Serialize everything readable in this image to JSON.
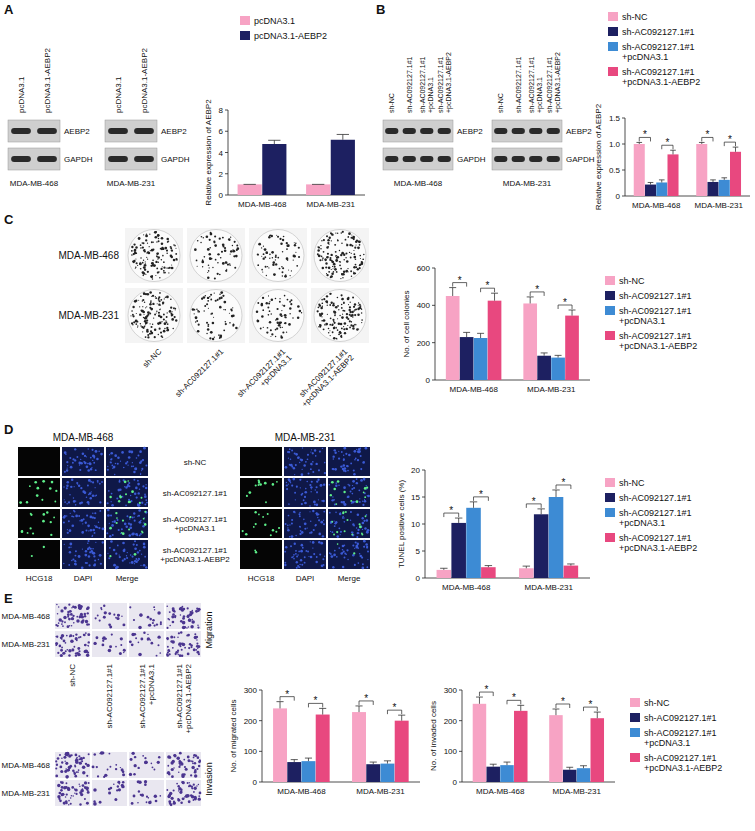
{
  "letters": [
    "A",
    "B",
    "C",
    "D",
    "E"
  ],
  "blots": [
    {
      "lanes": [
        "pcDNA3.1",
        "pcDNA3.1-AEBP2"
      ],
      "proteins": [
        "AEBP2",
        "GAPDH"
      ],
      "cell_line": "MDA-MB-468"
    },
    {
      "lanes": [
        "pcDNA3.1",
        "pcDNA3.1-AEBP2"
      ],
      "proteins": [
        "AEBP2",
        "GAPDH"
      ],
      "cell_line": "MDA-MB-231"
    },
    {
      "lanes": [
        "sh-NC",
        "sh-AC092127.1#1",
        "sh-AC092127.1#1 +pcDNA3.1",
        "sh-AC092127.1#1 +pcDNA3.1-AEBP2"
      ],
      "proteins": [
        "AEBP2",
        "GAPDH"
      ],
      "cell_line": "MDA-MB-468"
    },
    {
      "lanes": [
        "sh-NC",
        "sh-AC092127.1#1",
        "sh-AC092127.1#1 +pcDNA3.1",
        "sh-AC092127.1#1 +pcDNA3.1-AEBP2"
      ],
      "proteins": [
        "AEBP2",
        "GAPDH"
      ],
      "cell_line": "MDA-MB-231"
    }
  ],
  "colony_images": {
    "rows": [
      "MDA-MB-468",
      "MDA-MB-231"
    ],
    "columns": [
      "sh-NC",
      "sh-AC092127.1#1",
      "sh-AC092127.1#1 +pcDNA3.1",
      "sh-AC092127.1#1 +pcDNA3.1-AEBP2"
    ]
  },
  "tunel_images": {
    "panels": [
      "MDA-MB-468",
      "MDA-MB-231"
    ],
    "rows": [
      "sh-NC",
      "sh-AC092127.1#1",
      "sh-AC092127.1#1 +pcDNA3.1",
      "sh-AC092127.1#1 +pcDNA3.1-AEBP2"
    ],
    "columns": [
      "HCG18",
      "DAPI",
      "Merge"
    ]
  },
  "transwell_images": {
    "rows": [
      "MDA-MB-468",
      "MDA-MB-231"
    ],
    "columns": [
      "sh-NC",
      "sh-AC092127.1#1",
      "sh-AC092127.1#1 +pcDNA3.1",
      "sh-AC092127.1#1 +pcDNA3.1-AEBP2"
    ],
    "assays": [
      "Migration",
      "Invasion"
    ]
  },
  "chart_data": [
    {
      "type": "bar",
      "y_label": "Relative expression of AEBP2",
      "categories": [
        "MDA-MB-468",
        "MDA-MB-231"
      ],
      "series": [
        {
          "name": "pcDNA3.1",
          "color": "#f7a3c4",
          "values": [
            1,
            1
          ],
          "errors": [
            0,
            0
          ]
        },
        {
          "name": "pcDNA3.1-AEBP2",
          "color": "#1d2061",
          "values": [
            4.8,
            5.2
          ],
          "errors": [
            0.35,
            0.5
          ]
        }
      ],
      "ylim": [
        0,
        8
      ],
      "yticks": [
        0,
        2,
        4,
        6,
        8
      ],
      "legend": "top"
    },
    {
      "type": "bar",
      "y_label": "Relative expression of AEBP2",
      "categories": [
        "MDA-MB-468",
        "MDA-MB-231"
      ],
      "series": [
        {
          "name": "sh-NC",
          "color": "#f7a3c4",
          "values": [
            1,
            1
          ],
          "errors": [
            0.03,
            0.03
          ]
        },
        {
          "name": "sh-AC092127.1#1",
          "color": "#1d2061",
          "values": [
            0.22,
            0.27
          ],
          "errors": [
            0.04,
            0.04
          ]
        },
        {
          "name": "sh-AC092127.1#1 +pcDNA3.1",
          "color": "#3d8bd4",
          "values": [
            0.26,
            0.31
          ],
          "errors": [
            0.05,
            0.04
          ]
        },
        {
          "name": "sh-AC092127.1#1 +pcDNA3.1-AEBP2",
          "color": "#e8487f",
          "values": [
            0.8,
            0.85
          ],
          "errors": [
            0.08,
            0.09
          ]
        }
      ],
      "ylim": [
        0,
        1.5
      ],
      "yticks": [
        0,
        0.5,
        {
          "value": 1,
          "label": "1.0"
        },
        1.5
      ],
      "legend": "top",
      "annotations": [
        {
          "label": "*",
          "category": 0,
          "from": 0,
          "to": 1
        },
        {
          "label": "*",
          "category": 0,
          "from": 2,
          "to": 3
        },
        {
          "label": "*",
          "category": 1,
          "from": 0,
          "to": 1
        },
        {
          "label": "*",
          "category": 1,
          "from": 2,
          "to": 3
        }
      ]
    },
    {
      "type": "bar",
      "y_label": "No. of cell colonies",
      "categories": [
        "MDA-MB-468",
        "MDA-MB-231"
      ],
      "series": [
        {
          "name": "sh-NC",
          "color": "#f7a3c4",
          "values": [
            450,
            410
          ],
          "errors": [
            45,
            35
          ]
        },
        {
          "name": "sh-AC092127.1#1",
          "color": "#1d2061",
          "values": [
            230,
            130
          ],
          "errors": [
            25,
            15
          ]
        },
        {
          "name": "sh-AC092127.1#1 +pcDNA3.1",
          "color": "#3d8bd4",
          "values": [
            225,
            120
          ],
          "errors": [
            25,
            12
          ]
        },
        {
          "name": "sh-AC092127.1#1 +pcDNA3.1-AEBP2",
          "color": "#e8487f",
          "values": [
            425,
            345
          ],
          "errors": [
            40,
            30
          ]
        }
      ],
      "ylim": [
        0,
        600
      ],
      "yticks": [
        0,
        200,
        400,
        600
      ],
      "legend": "right",
      "annotations": [
        {
          "label": "*",
          "category": 0,
          "from": 0,
          "to": 1
        },
        {
          "label": "*",
          "category": 0,
          "from": 2,
          "to": 3
        },
        {
          "label": "*",
          "category": 1,
          "from": 0,
          "to": 1
        },
        {
          "label": "*",
          "category": 1,
          "from": 2,
          "to": 3
        }
      ]
    },
    {
      "type": "bar",
      "y_label": "TUNEL positive cells (%)",
      "categories": [
        "MDA-MB-468",
        "MDA-MB-231"
      ],
      "series": [
        {
          "name": "sh-NC",
          "color": "#f7a3c4",
          "values": [
            1.5,
            1.8
          ],
          "errors": [
            0.3,
            0.4
          ]
        },
        {
          "name": "sh-AC092127.1#1",
          "color": "#1d2061",
          "values": [
            10.2,
            11.8
          ],
          "errors": [
            0.9,
            1.0
          ]
        },
        {
          "name": "sh-AC092127.1#1 +pcDNA3.1",
          "color": "#3d8bd4",
          "values": [
            13,
            15
          ],
          "errors": [
            1.1,
            1.3
          ]
        },
        {
          "name": "sh-AC092127.1#1 +pcDNA3.1-AEBP2",
          "color": "#e8487f",
          "values": [
            2,
            2.3
          ],
          "errors": [
            0.3,
            0.3
          ]
        }
      ],
      "ylim": [
        0,
        20
      ],
      "yticks": [
        0,
        5,
        10,
        15,
        20
      ],
      "legend": "right",
      "annotations": [
        {
          "label": "*",
          "category": 0,
          "from": 0,
          "to": 1
        },
        {
          "label": "*",
          "category": 0,
          "from": 2,
          "to": 3
        },
        {
          "label": "*",
          "category": 1,
          "from": 0,
          "to": 1
        },
        {
          "label": "*",
          "category": 1,
          "from": 2,
          "to": 3
        }
      ]
    },
    {
      "type": "bar",
      "y_label": "No. of migrated cells",
      "categories": [
        "MDA-MB-468",
        "MDA-MB-231"
      ],
      "series": [
        {
          "color": "#f7a3c4",
          "values": [
            240,
            228
          ],
          "errors": [
            22,
            20
          ]
        },
        {
          "color": "#1d2061",
          "values": [
            65,
            58
          ],
          "errors": [
            8,
            7
          ]
        },
        {
          "color": "#3d8bd4",
          "values": [
            68,
            60
          ],
          "errors": [
            10,
            9
          ]
        },
        {
          "color": "#e8487f",
          "values": [
            220,
            200
          ],
          "errors": [
            20,
            18
          ]
        }
      ],
      "ylim": [
        0,
        300
      ],
      "yticks": [
        0,
        100,
        200,
        300
      ],
      "annotations": [
        {
          "label": "*",
          "category": 0,
          "from": 0,
          "to": 1
        },
        {
          "label": "*",
          "category": 0,
          "from": 2,
          "to": 3
        },
        {
          "label": "*",
          "category": 1,
          "from": 0,
          "to": 1
        },
        {
          "label": "*",
          "category": 1,
          "from": 2,
          "to": 3
        }
      ]
    },
    {
      "type": "bar",
      "y_label": "No. of invaded cells",
      "categories": [
        "MDA-MB-468",
        "MDA-MB-231"
      ],
      "series": [
        {
          "name": "sh-NC",
          "color": "#f7a3c4",
          "values": [
            255,
            218
          ],
          "errors": [
            22,
            20
          ]
        },
        {
          "name": "sh-AC092127.1#1",
          "color": "#1d2061",
          "values": [
            50,
            40
          ],
          "errors": [
            8,
            8
          ]
        },
        {
          "name": "sh-AC092127.1#1 +pcDNA3.1",
          "color": "#3d8bd4",
          "values": [
            55,
            45
          ],
          "errors": [
            10,
            8
          ]
        },
        {
          "name": "sh-AC092127.1#1 +pcDNA3.1-AEBP2",
          "color": "#e8487f",
          "values": [
            232,
            208
          ],
          "errors": [
            18,
            20
          ]
        }
      ],
      "ylim": [
        0,
        300
      ],
      "yticks": [
        0,
        100,
        200,
        300
      ],
      "legend": "right",
      "annotations": [
        {
          "label": "*",
          "category": 0,
          "from": 0,
          "to": 1
        },
        {
          "label": "*",
          "category": 0,
          "from": 2,
          "to": 3
        },
        {
          "label": "*",
          "category": 1,
          "from": 0,
          "to": 1
        },
        {
          "label": "*",
          "category": 1,
          "from": 2,
          "to": 3
        }
      ]
    }
  ]
}
